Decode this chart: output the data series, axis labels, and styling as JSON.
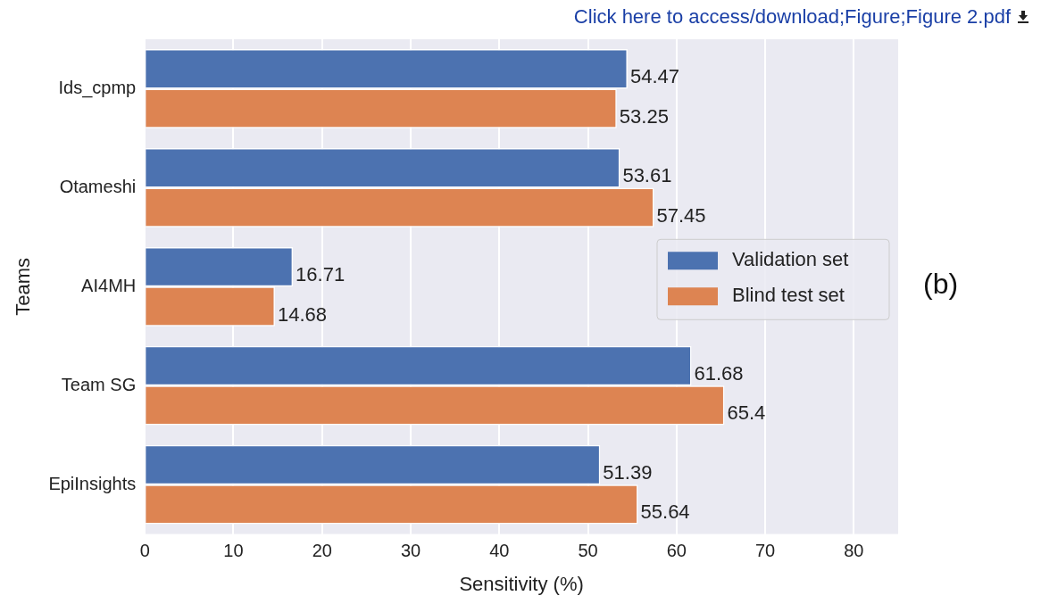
{
  "chart_data": {
    "type": "bar",
    "orientation": "horizontal",
    "xlabel": "Sensitivity (%)",
    "ylabel": "Teams",
    "categories": [
      "Ids_cpmp",
      "Otameshi",
      "AI4MH",
      "Team SG",
      "EpiInsights"
    ],
    "series": [
      {
        "name": "Validation set",
        "color": "#4c72b0",
        "values": [
          54.47,
          53.61,
          16.71,
          61.68,
          51.39
        ]
      },
      {
        "name": "Blind test set",
        "color": "#dd8452",
        "values": [
          53.25,
          57.45,
          14.68,
          65.4,
          55.64
        ]
      }
    ],
    "xlim": [
      0,
      85
    ],
    "xticks": [
      0,
      10,
      20,
      30,
      40,
      50,
      60,
      70,
      80
    ],
    "grid": "x",
    "legend": "right",
    "data_labels": true,
    "annotations": [
      "Click here to access/download;Figure;Figure 2.pdf",
      "(b)"
    ]
  }
}
